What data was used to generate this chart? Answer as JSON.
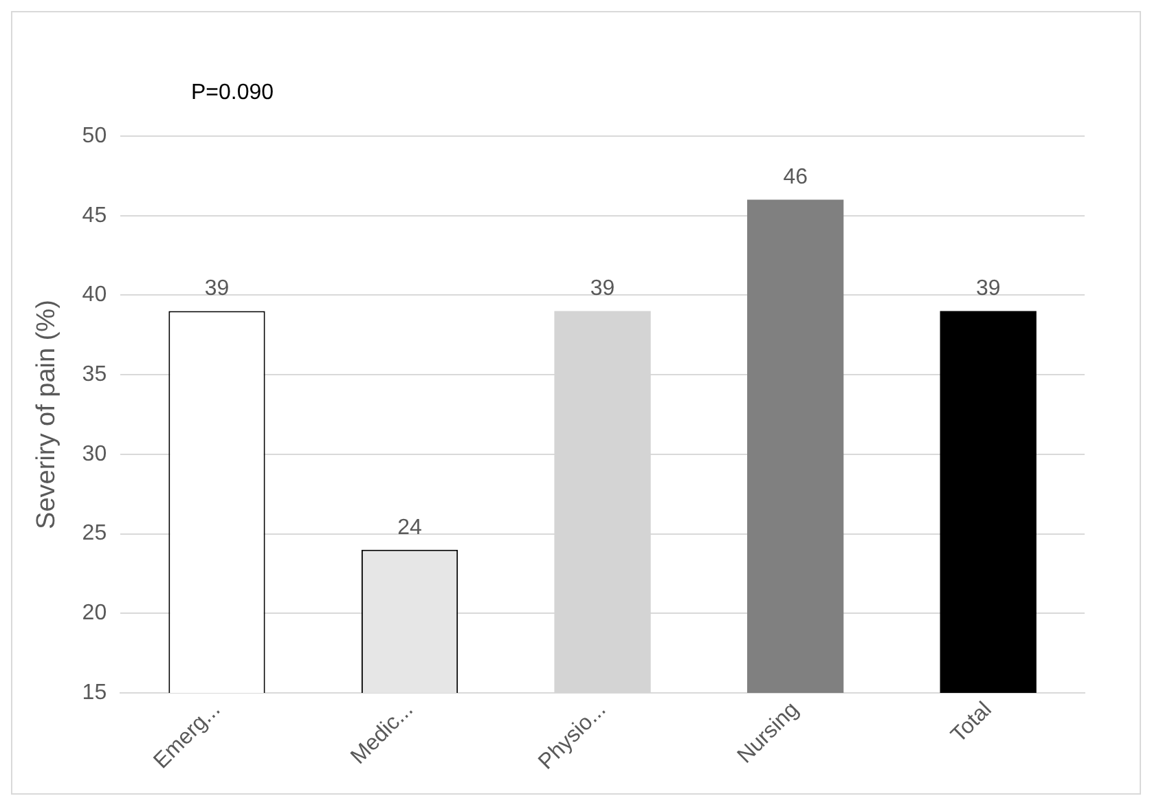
{
  "chart_data": {
    "type": "bar",
    "ylabel": "Severiry of pain (%)",
    "categories": [
      "Emerg...",
      "Medic...",
      "Physio...",
      "Nursing",
      "Total"
    ],
    "values": [
      39,
      24,
      39,
      46,
      39
    ],
    "colors": [
      "#ffffff",
      "#e6e6e6",
      "#d4d4d4",
      "#808080",
      "#000000"
    ],
    "ylim": [
      15,
      50
    ],
    "yticks": [
      15,
      20,
      25,
      30,
      35,
      40,
      45,
      50
    ],
    "grid": "y",
    "data_labels": true,
    "annotations": [
      "P=0.090"
    ]
  }
}
